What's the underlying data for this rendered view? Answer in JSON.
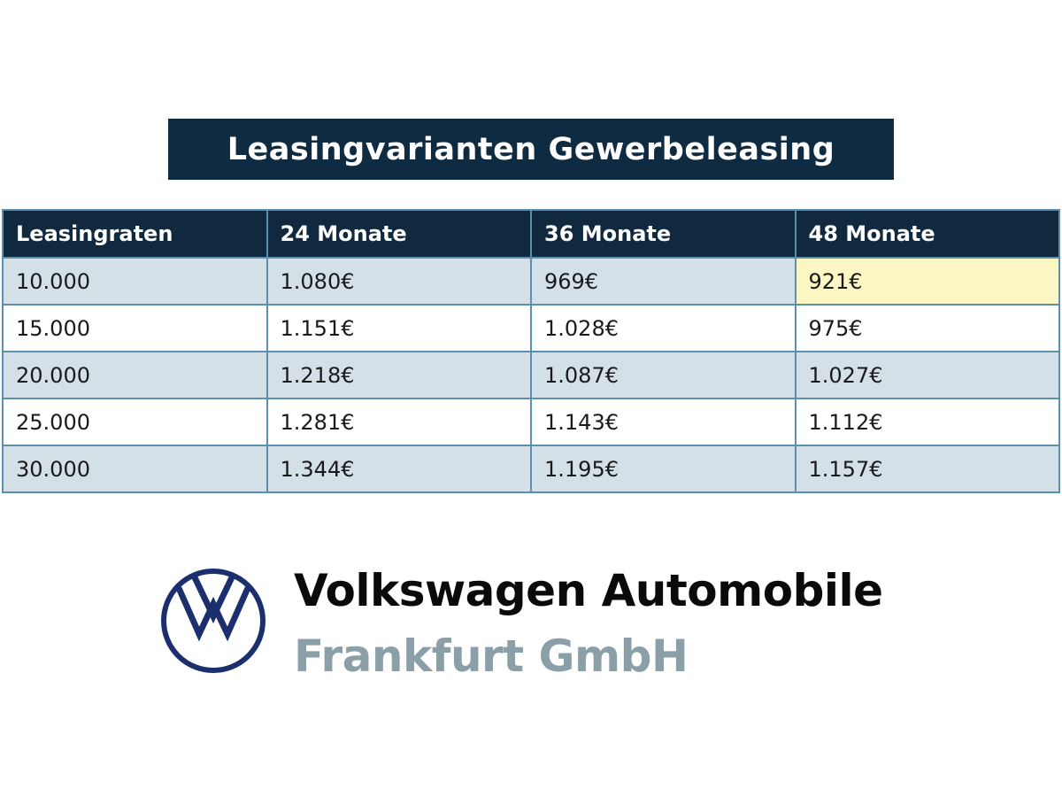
{
  "title": "Leasingvarianten Gewerbeleasing",
  "table": {
    "headers": [
      "Leasingraten",
      "24 Monate",
      "36 Monate",
      "48 Monate"
    ],
    "rows": [
      [
        "10.000",
        "1.080€",
        "969€",
        "921€"
      ],
      [
        "15.000",
        "1.151€",
        "1.028€",
        "975€"
      ],
      [
        "20.000",
        "1.218€",
        "1.087€",
        "1.027€"
      ],
      [
        "25.000",
        "1.281€",
        "1.143€",
        "1.112€"
      ],
      [
        "30.000",
        "1.344€",
        "1.195€",
        "1.157€"
      ]
    ],
    "highlighted_cell": "921€"
  },
  "brand": {
    "line1": "Volkswagen Automobile",
    "line2": "Frankfurt GmbH",
    "logo": "vw-logo-icon"
  },
  "colors": {
    "navy": "#0f2b42",
    "row_alt": "#d4e0e7",
    "highlight": "#fcf6c4",
    "border": "#5f8fae",
    "brand_grey": "#8a9fa7",
    "logo_blue": "#1b2f6e"
  }
}
